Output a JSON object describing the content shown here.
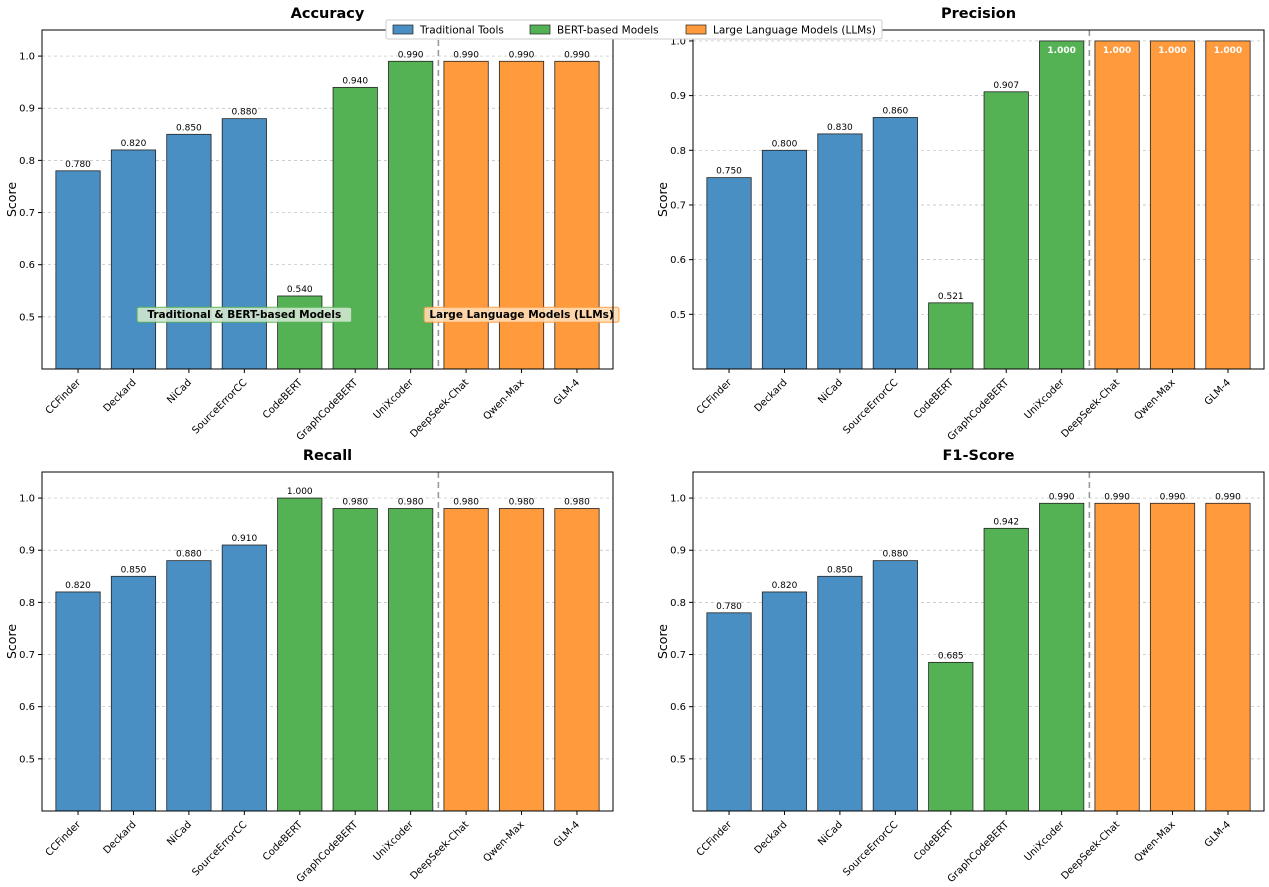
{
  "legend": {
    "placement": "top-center",
    "entries": [
      {
        "label": "Traditional Tools",
        "color": "#4a8fc4"
      },
      {
        "label": "BERT-based Models",
        "color": "#55b254"
      },
      {
        "label": "Large Language Models (LLMs)",
        "color": "#ff9a3d"
      }
    ]
  },
  "chart_data": [
    {
      "type": "bar",
      "title": "Accuracy",
      "xlabel": "",
      "ylabel": "Score",
      "ylim": [
        0.4,
        1.05
      ],
      "yticks": [
        "0.5",
        "0.6",
        "0.7",
        "0.8",
        "0.9",
        "1.0"
      ],
      "grid": true,
      "categories": [
        "CCFinder",
        "Deckard",
        "NiCad",
        "SourceErrorCC",
        "CodeBERT",
        "GraphCodeBERT",
        "UniXcoder",
        "DeepSeek-Chat",
        "Qwen-Max",
        "GLM-4"
      ],
      "groups": [
        "traditional",
        "traditional",
        "traditional",
        "traditional",
        "bert",
        "bert",
        "bert",
        "llm",
        "llm",
        "llm"
      ],
      "values": [
        0.78,
        0.82,
        0.85,
        0.88,
        0.54,
        0.94,
        0.99,
        0.99,
        0.99,
        0.99
      ],
      "value_labels": [
        "0.780",
        "0.820",
        "0.850",
        "0.880",
        "0.540",
        "0.940",
        "0.990",
        "0.990",
        "0.990",
        "0.990"
      ],
      "annotations": [
        {
          "text": "Traditional & BERT-based Models",
          "style": "green"
        },
        {
          "text": "Large Language Models (LLMs)",
          "style": "orange"
        }
      ]
    },
    {
      "type": "bar",
      "title": "Precision",
      "xlabel": "",
      "ylabel": "Score",
      "ylim": [
        0.4,
        1.02
      ],
      "yticks": [
        "0.5",
        "0.6",
        "0.7",
        "0.8",
        "0.9",
        "1.0"
      ],
      "grid": true,
      "categories": [
        "CCFinder",
        "Deckard",
        "NiCad",
        "SourceErrorCC",
        "CodeBERT",
        "GraphCodeBERT",
        "UniXcoder",
        "DeepSeek-Chat",
        "Qwen-Max",
        "GLM-4"
      ],
      "groups": [
        "traditional",
        "traditional",
        "traditional",
        "traditional",
        "bert",
        "bert",
        "bert",
        "llm",
        "llm",
        "llm"
      ],
      "values": [
        0.75,
        0.8,
        0.83,
        0.86,
        0.521,
        0.907,
        1.0,
        1.0,
        1.0,
        1.0
      ],
      "value_labels": [
        "0.750",
        "0.800",
        "0.830",
        "0.860",
        "0.521",
        "0.907",
        "1.000",
        "1.000",
        "1.000",
        "1.000"
      ],
      "annotations": []
    },
    {
      "type": "bar",
      "title": "Recall",
      "xlabel": "",
      "ylabel": "Score",
      "ylim": [
        0.4,
        1.05
      ],
      "yticks": [
        "0.5",
        "0.6",
        "0.7",
        "0.8",
        "0.9",
        "1.0"
      ],
      "grid": true,
      "categories": [
        "CCFinder",
        "Deckard",
        "NiCad",
        "SourceErrorCC",
        "CodeBERT",
        "GraphCodeBERT",
        "UniXcoder",
        "DeepSeek-Chat",
        "Qwen-Max",
        "GLM-4"
      ],
      "groups": [
        "traditional",
        "traditional",
        "traditional",
        "traditional",
        "bert",
        "bert",
        "bert",
        "llm",
        "llm",
        "llm"
      ],
      "values": [
        0.82,
        0.85,
        0.88,
        0.91,
        1.0,
        0.98,
        0.98,
        0.98,
        0.98,
        0.98
      ],
      "value_labels": [
        "0.820",
        "0.850",
        "0.880",
        "0.910",
        "1.000",
        "0.980",
        "0.980",
        "0.980",
        "0.980",
        "0.980"
      ],
      "annotations": []
    },
    {
      "type": "bar",
      "title": "F1-Score",
      "xlabel": "",
      "ylabel": "Score",
      "ylim": [
        0.4,
        1.05
      ],
      "yticks": [
        "0.5",
        "0.6",
        "0.7",
        "0.8",
        "0.9",
        "1.0"
      ],
      "grid": true,
      "categories": [
        "CCFinder",
        "Deckard",
        "NiCad",
        "SourceErrorCC",
        "CodeBERT",
        "GraphCodeBERT",
        "UniXcoder",
        "DeepSeek-Chat",
        "Qwen-Max",
        "GLM-4"
      ],
      "groups": [
        "traditional",
        "traditional",
        "traditional",
        "traditional",
        "bert",
        "bert",
        "bert",
        "llm",
        "llm",
        "llm"
      ],
      "values": [
        0.78,
        0.82,
        0.85,
        0.88,
        0.685,
        0.942,
        0.99,
        0.99,
        0.99,
        0.99
      ],
      "value_labels": [
        "0.780",
        "0.820",
        "0.850",
        "0.880",
        "0.685",
        "0.942",
        "0.990",
        "0.990",
        "0.990",
        "0.990"
      ],
      "annotations": []
    }
  ],
  "colors": {
    "traditional": "#4a8fc4",
    "bert": "#55b254",
    "llm": "#ff9a3d",
    "annotation_green_fill": "#cfe6cf",
    "annotation_green_edge": "#55b254",
    "annotation_orange_fill": "#ffdcb3",
    "annotation_orange_edge": "#ff9a3d",
    "divider": "#999999",
    "grid": "#bbbbbb"
  }
}
